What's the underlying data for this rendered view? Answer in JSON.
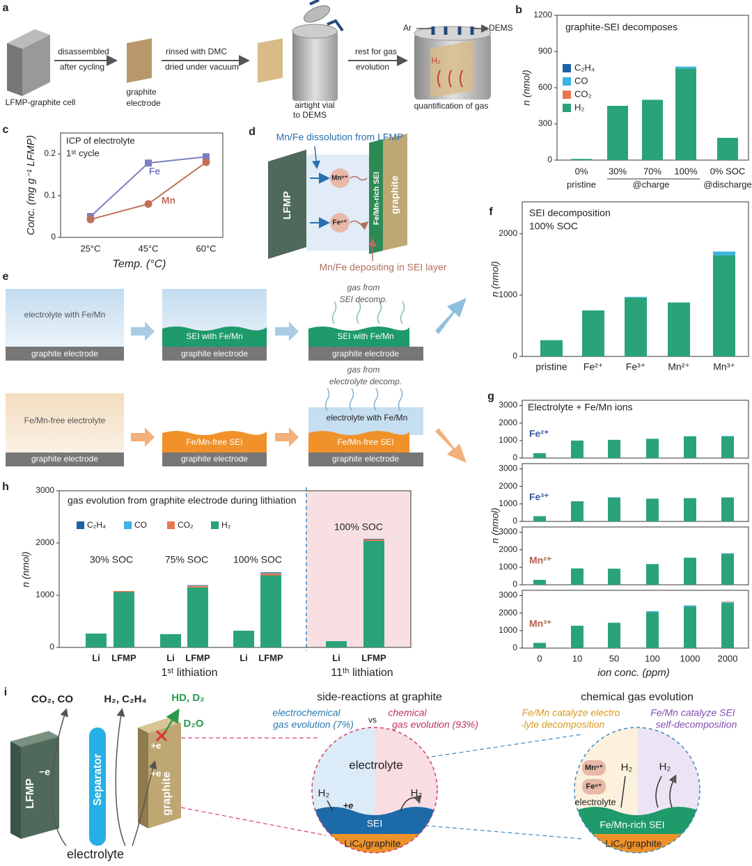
{
  "chart_data": [
    {
      "label": "b",
      "type": "bar",
      "title": "graphite-SEI decomposes",
      "y_label": "n (nmol)",
      "categories": [
        "0%",
        "30%",
        "70%",
        "100%",
        "0% SOC"
      ],
      "groups": [
        "pristine",
        "@charge",
        "@discharge"
      ],
      "ylim": [
        0,
        1200
      ],
      "yticks": [
        0,
        300,
        600,
        900,
        1200
      ],
      "legend": "left",
      "series": [
        {
          "name": "C₂H₄",
          "color": "#1d62a6",
          "values": [
            0,
            0,
            0,
            0,
            0
          ]
        },
        {
          "name": "CO",
          "color": "#3db3e3",
          "values": [
            0,
            0,
            0,
            15,
            0
          ]
        },
        {
          "name": "CO₂",
          "color": "#e9774d",
          "values": [
            0,
            0,
            0,
            0,
            0
          ]
        },
        {
          "name": "H₂",
          "color": "#2ba37a",
          "values": [
            10,
            450,
            500,
            760,
            185
          ]
        }
      ]
    },
    {
      "label": "c",
      "type": "line",
      "title": [
        "ICP of electrolyte",
        "1ˢᵗ cycle"
      ],
      "y_label": "Conc. (mg g⁻¹ LFMP)",
      "x_label": "Temp. (°C)",
      "categories": [
        "25°C",
        "45°C",
        "60°C"
      ],
      "ylim": [
        0,
        0.25
      ],
      "yticks": [
        0,
        0.1,
        0.2
      ],
      "series": [
        {
          "name": "Fe",
          "color": "#7b7fc4",
          "marker": "square",
          "values": [
            0.05,
            0.178,
            0.193
          ]
        },
        {
          "name": "Mn",
          "color": "#c0705a",
          "marker": "circle",
          "values": [
            0.043,
            0.08,
            0.18
          ]
        }
      ]
    },
    {
      "label": "f",
      "type": "bar",
      "title": [
        "SEI decomposition",
        "100% SOC"
      ],
      "y_label": "n (nmol)",
      "categories": [
        "pristine",
        "Fe²⁺",
        "Fe³⁺",
        "Mn²⁺",
        "Mn³⁺"
      ],
      "ylim": [
        0,
        2520
      ],
      "yticks": [
        0,
        1000,
        2000
      ],
      "series": [
        {
          "color": "#3db3e3",
          "values": [
            0,
            0,
            10,
            0,
            60
          ]
        },
        {
          "color": "#2ba37a",
          "values": [
            265,
            750,
            960,
            880,
            1650
          ]
        }
      ]
    },
    {
      "label": "g",
      "type": "bar",
      "title": "Electrolyte + Fe/Mn ions",
      "y_label": "n (nmol)",
      "x_label": "ion conc. (ppm)",
      "categories": [
        "0",
        "10",
        "50",
        "100",
        "1000",
        "2000"
      ],
      "ylim": [
        0,
        3300
      ],
      "yticks": [
        0,
        1000,
        2000,
        3000
      ],
      "subplots": [
        {
          "name": "Fe²⁺",
          "color": "#3a5aa0",
          "series": [
            {
              "color": "#3db3e3",
              "values": [
                0,
                0,
                0,
                0,
                10,
                20
              ]
            },
            {
              "color": "#2ba37a",
              "values": [
                280,
                1000,
                1040,
                1100,
                1240,
                1240
              ]
            }
          ]
        },
        {
          "name": "Fe³⁺",
          "color": "#3a5aa0",
          "series": [
            {
              "color": "#3db3e3",
              "values": [
                0,
                0,
                30,
                0,
                0,
                0
              ]
            },
            {
              "color": "#2ba37a",
              "values": [
                300,
                1150,
                1350,
                1300,
                1330,
                1370
              ]
            }
          ]
        },
        {
          "name": "Mn²⁺",
          "color": "#b06050",
          "series": [
            {
              "color": "#3db3e3",
              "values": [
                0,
                20,
                0,
                0,
                20,
                20
              ]
            },
            {
              "color": "#2ba37a",
              "values": [
                280,
                920,
                920,
                1180,
                1530,
                1780
              ]
            }
          ]
        },
        {
          "name": "Mn³⁺",
          "color": "#b06050",
          "series": [
            {
              "color": "#e9774d",
              "values": [
                0,
                0,
                0,
                0,
                0,
                30
              ]
            },
            {
              "color": "#3db3e3",
              "values": [
                0,
                0,
                0,
                60,
                60,
                40
              ]
            },
            {
              "color": "#2ba37a",
              "values": [
                300,
                1280,
                1450,
                2050,
                2380,
                2580
              ]
            }
          ]
        }
      ]
    },
    {
      "label": "h",
      "type": "bar",
      "title": "gas evolution from graphite electrode during lithiation",
      "y_label": "n (nmol)",
      "categories": [
        "Li",
        "LFMP",
        "Li",
        "LFMP",
        "Li",
        "LFMP",
        "Li",
        "LFMP"
      ],
      "groups": [
        "1ˢᵗ lithiation",
        "11ᵗʰ lithiation"
      ],
      "soc_labels": [
        "30% SOC",
        "75% SOC",
        "100% SOC",
        "100% SOC"
      ],
      "ylim": [
        0,
        3000
      ],
      "yticks": [
        0,
        1000,
        2000,
        3000
      ],
      "legend": "top",
      "series": [
        {
          "name": "C₂H₄",
          "color": "#1d62a6",
          "values": [
            0,
            0,
            0,
            5,
            0,
            10,
            0,
            10
          ]
        },
        {
          "name": "CO",
          "color": "#3db3e3",
          "values": [
            0,
            0,
            0,
            10,
            0,
            10,
            0,
            0
          ]
        },
        {
          "name": "CO₂",
          "color": "#e9774d",
          "values": [
            0,
            20,
            0,
            30,
            0,
            40,
            0,
            30
          ]
        },
        {
          "name": "H₂",
          "color": "#2ba37a",
          "values": [
            265,
            1060,
            255,
            1150,
            320,
            1380,
            120,
            2040
          ]
        }
      ]
    }
  ],
  "diagrams": {
    "a": {
      "label": "a",
      "texts": [
        "LFMP-graphite cell",
        "disassembled",
        "after cycling",
        "graphite",
        "electrode",
        "rinsed with DMC",
        "dried under vacuum",
        "airtight vial",
        "to DEMS",
        "rest for gas",
        "evolution",
        "Ar",
        "DEMS",
        "H₂",
        "quantification of gas"
      ]
    },
    "d": {
      "label": "d",
      "texts": [
        "Mn/Fe dissolution from LFMP",
        "LFMP",
        "Mnⁿ⁺",
        "Feⁿ⁺",
        "Fe/Mn-rich SEI",
        "graphite",
        "Mn/Fe depositing in SEI layer"
      ]
    },
    "e": {
      "label": "e",
      "texts": [
        "electrolyte with Fe/Mn",
        "graphite electrode",
        "SEI with Fe/Mn",
        "graphite electrode",
        "gas from",
        "SEI decomp.",
        "SEI with Fe/Mn",
        "graphite electrode",
        "Fe/Mn-free electrolyte",
        "graphite electrode",
        "Fe/Mn-free SEI",
        "graphite electrode",
        "gas from",
        "electrolyte decomp.",
        "electrolyte with Fe/Mn",
        "Fe/Mn-free SEI",
        "graphite electrode"
      ]
    },
    "i": {
      "label": "i",
      "texts": [
        "CO₂, CO",
        "H₂, C₂H₄",
        "HD, D₂",
        "D₂O",
        "LFMP",
        "−e",
        "Separator",
        "+e",
        "+e",
        "graphite",
        "electrolyte",
        "side-reactions at graphite",
        "electrochemical",
        "gas evolution (7%)",
        "vs",
        "chemical",
        "gas evolution (93%)",
        "electrolyte",
        "H₂",
        "+e",
        "H₂",
        "SEI",
        "LiC₆/graphite",
        "chemical gas evolution",
        "Fe/Mn catalyze electro",
        "-lyte decomposition",
        "Fe/Mn catalyze SEI",
        "self-decomposition",
        "Mnⁿ⁺",
        "H₂",
        "H₂",
        "Feⁿ⁺",
        "electrolyte",
        "Fe/Mn-rich SEI",
        "LiC₆/graphite"
      ]
    }
  }
}
